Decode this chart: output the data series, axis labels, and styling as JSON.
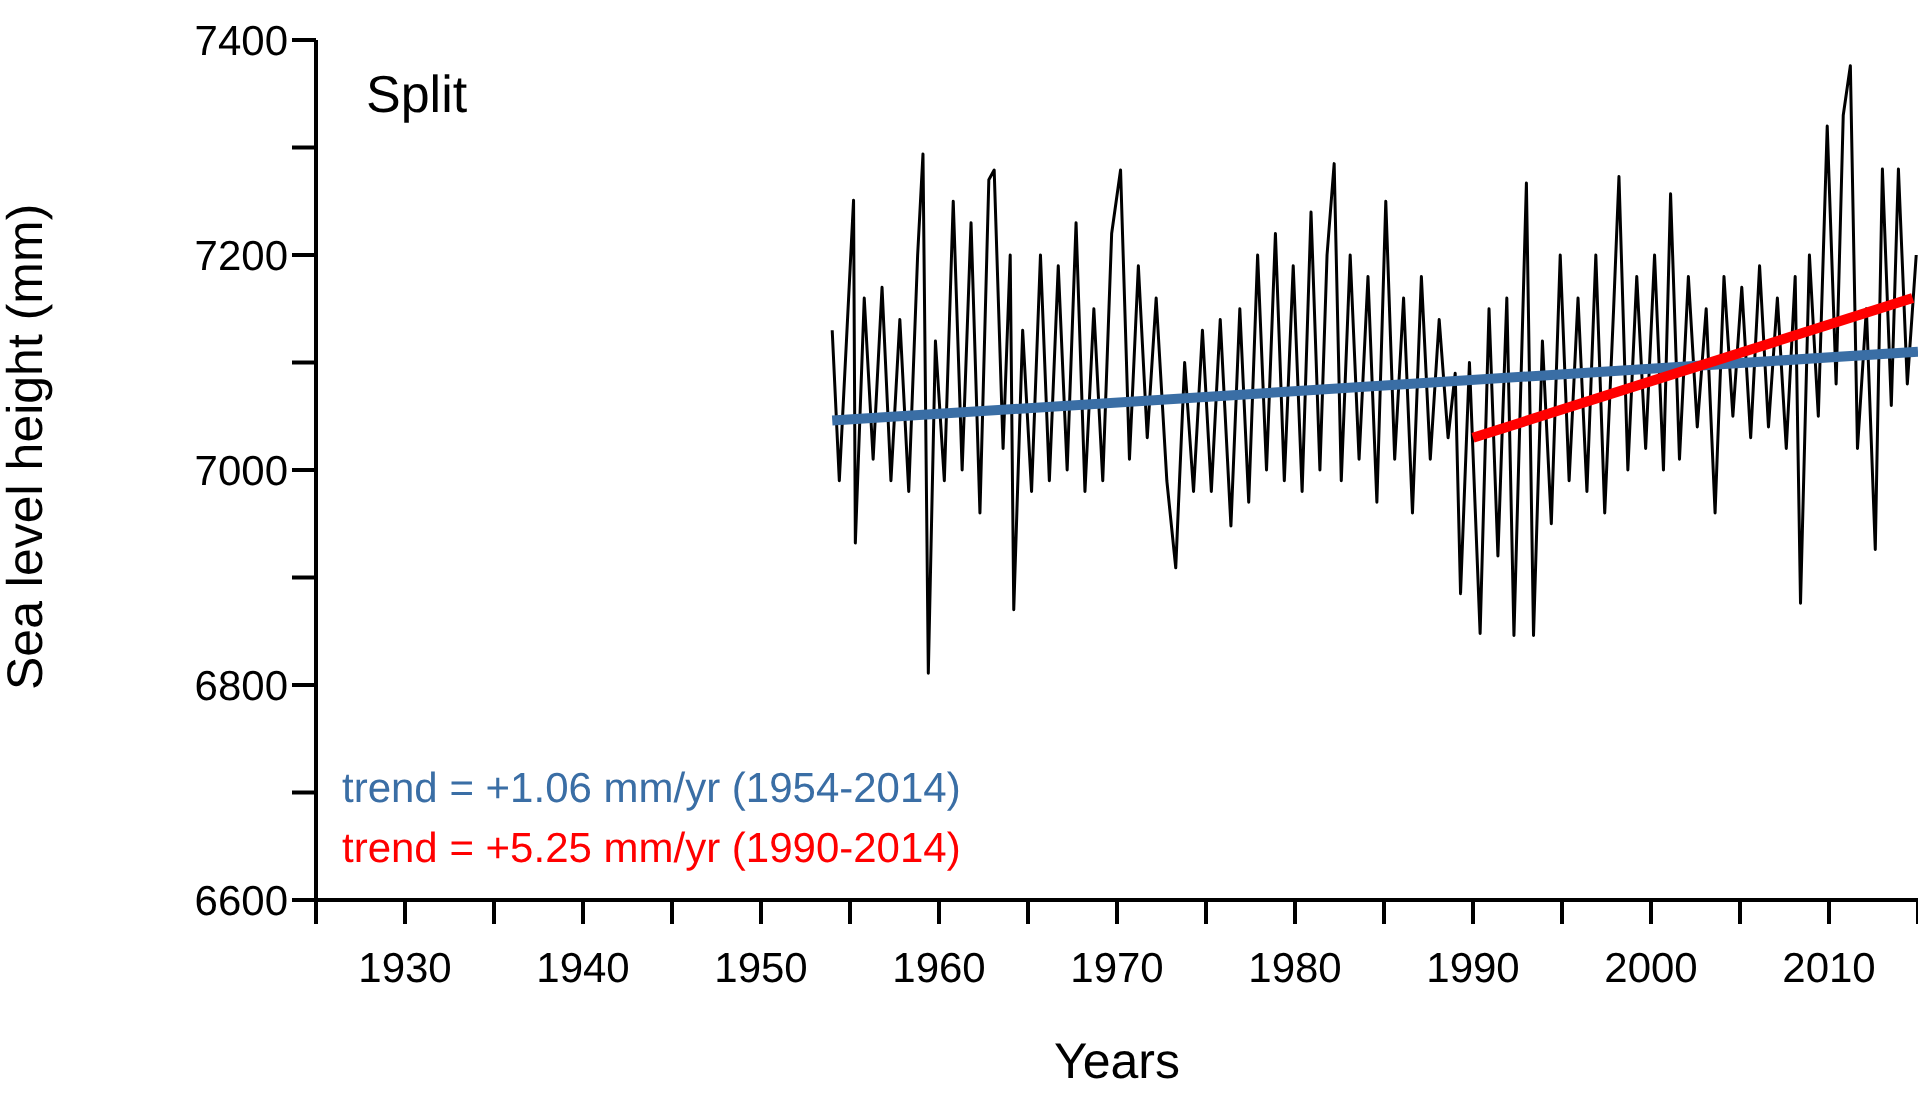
{
  "chart_data": {
    "type": "line",
    "title": "Split",
    "xlabel": "Years",
    "ylabel": "Sea level height (mm)",
    "xlim": [
      1925,
      2015
    ],
    "xticks": [
      {
        "value": 1925,
        "label": null
      },
      1930,
      {
        "value": 1935,
        "label": null
      },
      1940,
      {
        "value": 1945,
        "label": null
      },
      1950,
      {
        "value": 1955,
        "label": null
      },
      1960,
      {
        "value": 1965,
        "label": null
      },
      1970,
      {
        "value": 1975,
        "label": null
      },
      1980,
      {
        "value": 1985,
        "label": null
      },
      1990,
      {
        "value": 1995,
        "label": null
      },
      2000,
      {
        "value": 2005,
        "label": null
      },
      2010,
      {
        "value": 2015,
        "label": null
      }
    ],
    "ylim": [
      6600,
      7400
    ],
    "yticks": [
      6600,
      {
        "value": 6700,
        "label": null
      },
      6800,
      {
        "value": 6900,
        "label": null
      },
      7000,
      {
        "value": 7100,
        "label": null
      },
      7200,
      {
        "value": 7300,
        "label": null
      },
      7400
    ],
    "grid": false,
    "marker": "none",
    "line_style": "solid",
    "annotations": [
      "trend = +1.06 mm/yr (1954-2014)",
      "trend = +5.25 mm/yr (1990-2014)"
    ],
    "series": [
      {
        "color": "#000000",
        "x": [
          1954.0,
          1954.4,
          1954.8,
          1955.2,
          1955.3,
          1955.8,
          1956.3,
          1956.8,
          1957.3,
          1957.8,
          1958.3,
          1958.8,
          1959.1,
          1959.4,
          1959.8,
          1960.3,
          1960.8,
          1961.3,
          1961.8,
          1962.3,
          1962.8,
          1963.1,
          1963.6,
          1964.0,
          1964.2,
          1964.7,
          1965.2,
          1965.7,
          1966.2,
          1966.7,
          1967.2,
          1967.7,
          1968.2,
          1968.7,
          1969.2,
          1969.7,
          1970.2,
          1970.7,
          1971.2,
          1971.7,
          1972.2,
          1972.8,
          1973.3,
          1973.8,
          1974.3,
          1974.8,
          1975.3,
          1975.8,
          1976.4,
          1976.9,
          1977.4,
          1977.9,
          1978.4,
          1978.9,
          1979.4,
          1979.9,
          1980.4,
          1980.9,
          1981.4,
          1981.8,
          1982.2,
          1982.6,
          1983.1,
          1983.6,
          1984.1,
          1984.6,
          1985.1,
          1985.6,
          1986.1,
          1986.6,
          1987.1,
          1987.6,
          1988.1,
          1988.6,
          1989.0,
          1989.3,
          1989.8,
          1990.4,
          1990.9,
          1991.4,
          1991.9,
          1992.3,
          1993.0,
          1993.4,
          1993.9,
          1994.4,
          1994.9,
          1995.4,
          1995.9,
          1996.4,
          1996.9,
          1997.4,
          1997.9,
          1998.2,
          1998.7,
          1999.2,
          1999.7,
          2000.2,
          2000.7,
          2001.1,
          2001.6,
          2002.1,
          2002.6,
          2003.1,
          2003.6,
          2004.1,
          2004.6,
          2005.1,
          2005.6,
          2006.1,
          2006.6,
          2007.1,
          2007.6,
          2008.1,
          2008.4,
          2008.9,
          2009.4,
          2009.9,
          2010.4,
          2010.8,
          2011.2,
          2011.6,
          2012.1,
          2012.6,
          2013.0,
          2013.5,
          2013.9,
          2014.4,
          2014.9
        ],
        "values": [
          7130,
          6990,
          7120,
          7251,
          6932,
          7160,
          7010,
          7170,
          6990,
          7140,
          6980,
          7200,
          7294,
          6811,
          7120,
          6990,
          7250,
          7000,
          7230,
          6960,
          7270,
          7279,
          7020,
          7200,
          6870,
          7130,
          6980,
          7200,
          6990,
          7190,
          7000,
          7230,
          6980,
          7150,
          6990,
          7220,
          7279,
          7010,
          7190,
          7030,
          7160,
          6990,
          6909,
          7100,
          6980,
          7130,
          6980,
          7140,
          6948,
          7150,
          6970,
          7200,
          7000,
          7220,
          6990,
          7190,
          6980,
          7240,
          7000,
          7200,
          7285,
          6990,
          7200,
          7010,
          7180,
          6970,
          7250,
          7010,
          7160,
          6960,
          7180,
          7010,
          7140,
          7030,
          7090,
          6885,
          7100,
          6848,
          7150,
          6920,
          7160,
          6846,
          7267,
          6846,
          7120,
          6950,
          7200,
          6990,
          7160,
          6980,
          7200,
          6960,
          7150,
          7273,
          7000,
          7180,
          7020,
          7200,
          7000,
          7257,
          7010,
          7180,
          7040,
          7150,
          6960,
          7180,
          7050,
          7170,
          7030,
          7190,
          7040,
          7160,
          7020,
          7180,
          6876,
          7200,
          7050,
          7320,
          7080,
          7330,
          7376,
          7020,
          7150,
          6926,
          7280,
          7060,
          7280,
          7080,
          7200
        ]
      },
      {
        "color": "#3a6ea5",
        "x": [
          1954,
          2015
        ],
        "values": [
          7046,
          7110
        ]
      },
      {
        "color": "#ff0000",
        "x": [
          1990,
          2014.7
        ],
        "values": [
          7030,
          7160
        ]
      }
    ]
  }
}
